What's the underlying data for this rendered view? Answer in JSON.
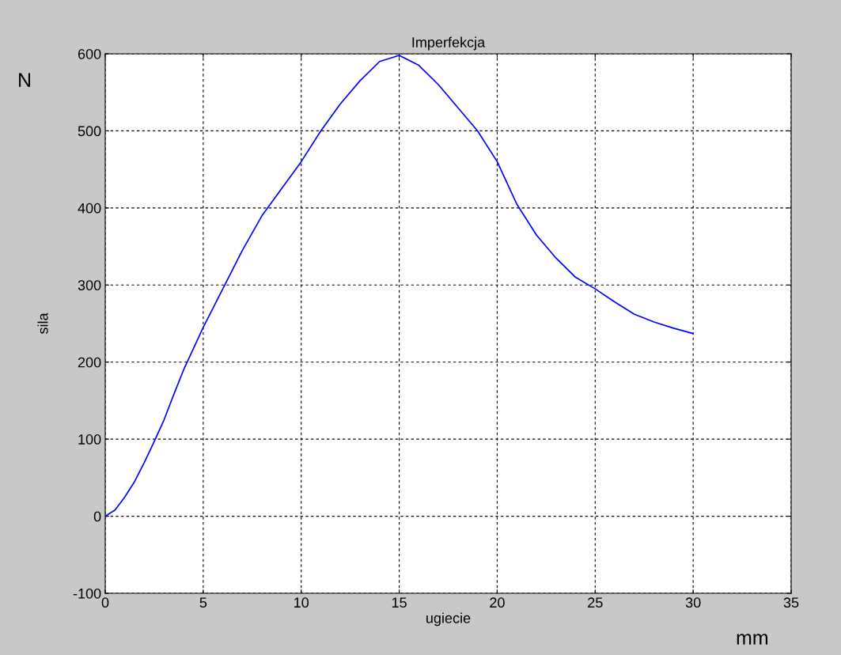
{
  "chart_data": {
    "type": "line",
    "title": "Imperfekcja",
    "xlabel": "ugiecie",
    "ylabel": "sila",
    "annotations": [
      "N",
      "mm"
    ],
    "x": [
      0,
      0.5,
      1,
      1.5,
      2,
      2.5,
      3,
      3.5,
      4,
      5,
      6,
      7,
      8,
      9,
      10,
      11,
      12,
      13,
      14,
      15,
      16,
      17,
      18,
      19,
      20,
      21,
      22,
      23,
      24,
      25,
      26,
      27,
      28,
      29,
      30
    ],
    "series": [
      {
        "color": "#0000ff",
        "values": [
          0,
          8,
          25,
          45,
          70,
          97,
          125,
          158,
          190,
          245,
          295,
          345,
          390,
          425,
          460,
          500,
          535,
          565,
          590,
          598,
          585,
          560,
          530,
          500,
          460,
          405,
          365,
          335,
          310,
          295,
          278,
          262,
          252,
          244,
          237
        ]
      }
    ],
    "xlim": [
      0,
      35
    ],
    "xticks": [
      0,
      5,
      10,
      15,
      20,
      25,
      30,
      35
    ],
    "ylim": [
      -100,
      600
    ],
    "yticks": [
      -100,
      0,
      100,
      200,
      300,
      400,
      500,
      600
    ],
    "grid": true,
    "legend": false
  }
}
